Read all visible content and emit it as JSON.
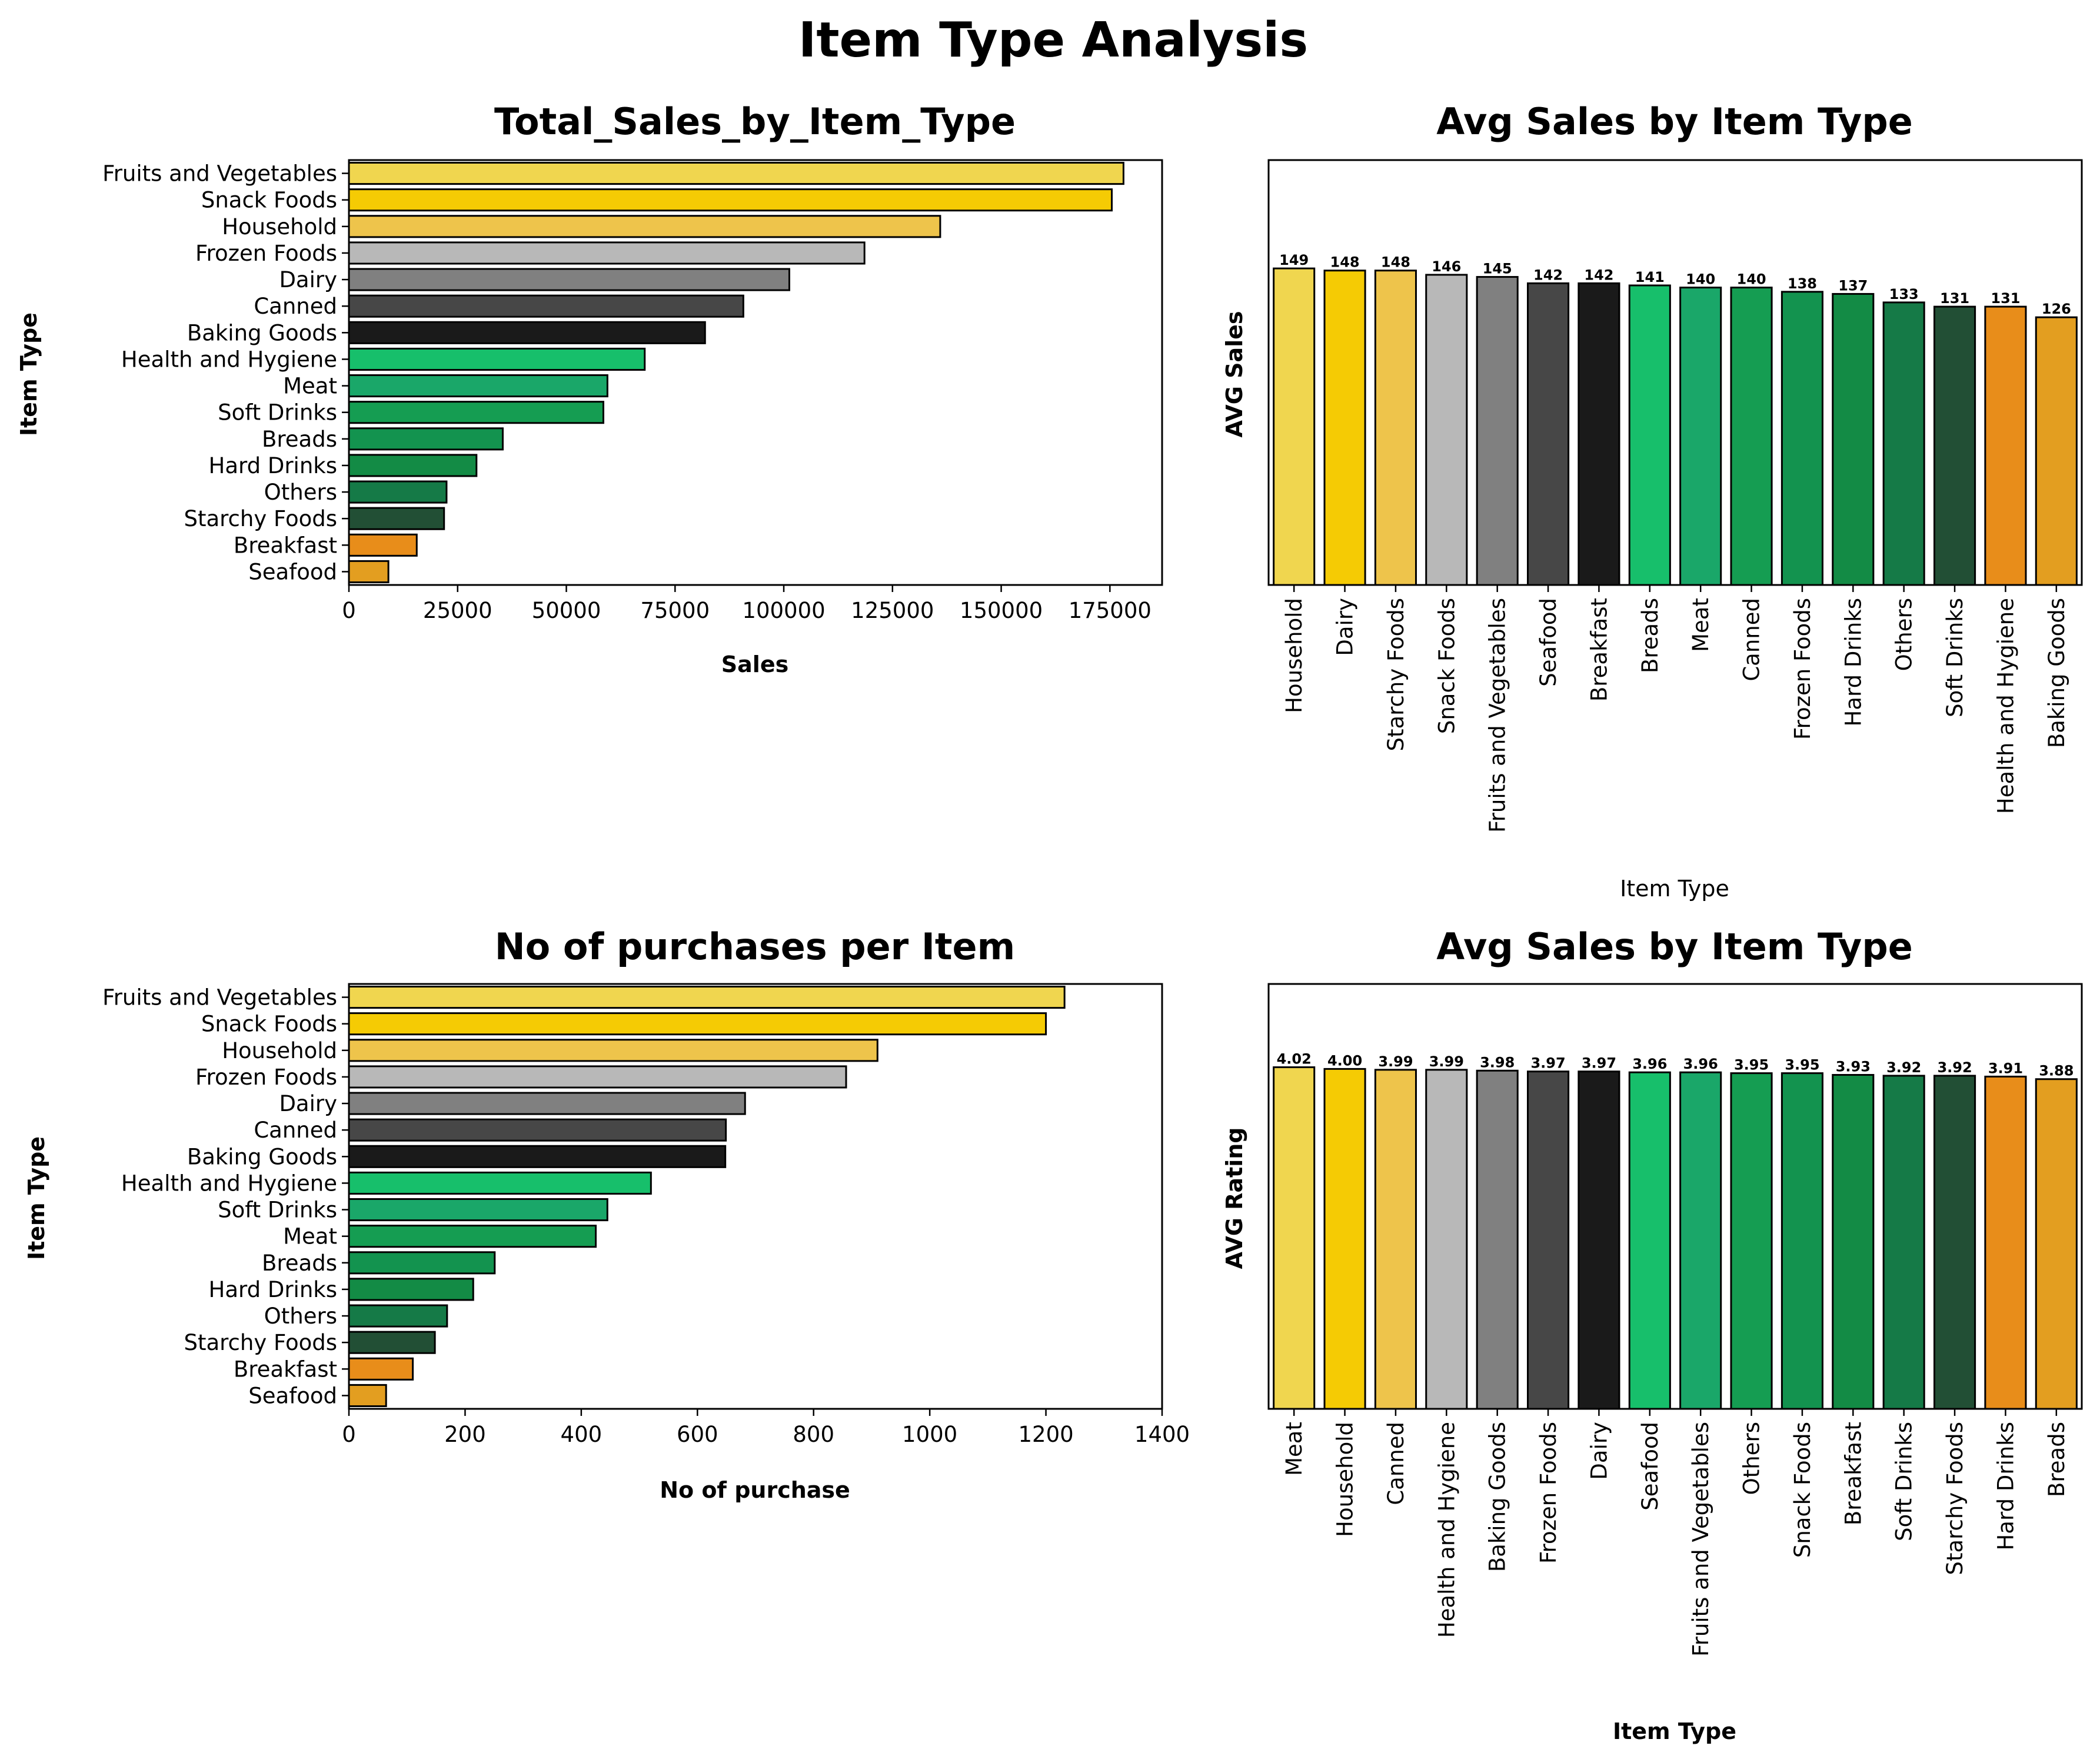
{
  "suptitle": "Item Type Analysis",
  "colors": [
    "#F0D64F",
    "#F5CB04",
    "#EEC44B",
    "#B8B8B8",
    "#808080",
    "#474747",
    "#1A1A1A",
    "#17BF6B",
    "#1AA769",
    "#159D52",
    "#13934F",
    "#138B45",
    "#157A47",
    "#224F35",
    "#E88D1A",
    "#E39E20"
  ],
  "chart_data": [
    {
      "type": "bar",
      "orientation": "horizontal",
      "title": "Total_Sales_by_Item_Type",
      "xlabel": "Sales",
      "ylabel": "Item Type",
      "categories": [
        "Fruits and Vegetables",
        "Snack Foods",
        "Household",
        "Frozen Foods",
        "Dairy",
        "Canned",
        "Baking Goods",
        "Health and Hygiene",
        "Meat",
        "Soft Drinks",
        "Breads",
        "Hard Drinks",
        "Others",
        "Starchy Foods",
        "Breakfast",
        "Seafood"
      ],
      "values": [
        178124,
        175434,
        135977,
        118559,
        101276,
        90706,
        81895,
        68025,
        59450,
        58515,
        35380,
        29334,
        22451,
        21880,
        15597,
        9078
      ],
      "xlim": [
        0,
        187000
      ],
      "xticks": [
        0,
        25000,
        50000,
        75000,
        100000,
        125000,
        150000,
        175000
      ],
      "xtick_labels": [
        "0",
        "25000",
        "50000",
        "75000",
        "100000",
        "125000",
        "150000",
        "175000"
      ],
      "grid": false
    },
    {
      "type": "bar",
      "orientation": "vertical",
      "title": "Avg Sales by Item Type",
      "xlabel": "Item Type",
      "ylabel": "AVG Sales",
      "categories": [
        "Household",
        "Dairy",
        "Starchy Foods",
        "Snack Foods",
        "Fruits and Vegetables",
        "Seafood",
        "Breakfast",
        "Breads",
        "Meat",
        "Canned",
        "Frozen Foods",
        "Hard Drinks",
        "Others",
        "Soft Drinks",
        "Health and Hygiene",
        "Baking Goods"
      ],
      "values": [
        149,
        148,
        148,
        146,
        145,
        142,
        142,
        141,
        140,
        140,
        138,
        137,
        133,
        131,
        131,
        126
      ],
      "data_labels": [
        "149",
        "148",
        "148",
        "146",
        "145",
        "142",
        "142",
        "141",
        "140",
        "140",
        "138",
        "137",
        "133",
        "131",
        "131",
        "126"
      ],
      "ylim": [
        0,
        200
      ],
      "yticks_visible": false,
      "grid": false
    },
    {
      "type": "bar",
      "orientation": "horizontal",
      "title": "No of purchases per Item",
      "xlabel": "No of purchase",
      "ylabel": "Item Type",
      "categories": [
        "Fruits and Vegetables",
        "Snack Foods",
        "Household",
        "Frozen Foods",
        "Dairy",
        "Canned",
        "Baking Goods",
        "Health and Hygiene",
        "Soft Drinks",
        "Meat",
        "Breads",
        "Hard Drinks",
        "Others",
        "Starchy Foods",
        "Breakfast",
        "Seafood"
      ],
      "values": [
        1232,
        1200,
        910,
        856,
        682,
        649,
        648,
        520,
        445,
        425,
        251,
        214,
        169,
        148,
        110,
        64
      ],
      "xlim": [
        0,
        1400
      ],
      "xticks": [
        0,
        200,
        400,
        600,
        800,
        1000,
        1200,
        1400
      ],
      "xtick_labels": [
        "0",
        "200",
        "400",
        "600",
        "800",
        "1000",
        "1200",
        "1400"
      ],
      "grid": false
    },
    {
      "type": "bar",
      "orientation": "vertical",
      "title": "Avg Sales by Item Type",
      "xlabel": "Item Type",
      "ylabel": "AVG Rating",
      "categories": [
        "Meat",
        "Household",
        "Canned",
        "Health and Hygiene",
        "Baking Goods",
        "Frozen Foods",
        "Dairy",
        "Seafood",
        "Fruits and Vegetables",
        "Others",
        "Snack Foods",
        "Breakfast",
        "Soft Drinks",
        "Starchy Foods",
        "Hard Drinks",
        "Breads"
      ],
      "values": [
        4.02,
        4.0,
        3.99,
        3.99,
        3.98,
        3.97,
        3.97,
        3.96,
        3.96,
        3.95,
        3.95,
        3.93,
        3.92,
        3.92,
        3.91,
        3.88
      ],
      "data_labels": [
        "4.02",
        "4.00",
        "3.99",
        "3.99",
        "3.98",
        "3.97",
        "3.97",
        "3.96",
        "3.96",
        "3.95",
        "3.95",
        "3.93",
        "3.92",
        "3.92",
        "3.91",
        "3.88"
      ],
      "ylim": [
        0,
        5
      ],
      "yticks_visible": false,
      "grid": false
    }
  ]
}
